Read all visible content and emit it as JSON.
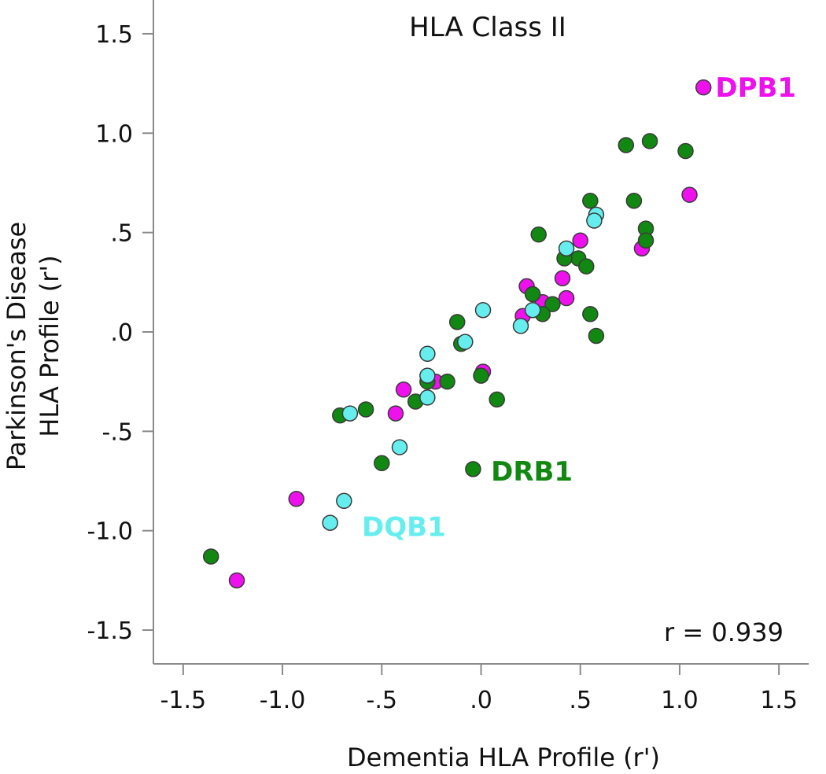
{
  "chart_data": {
    "type": "scatter",
    "title": "HLA Class II",
    "xlabel": "Dementia HLA Profile (r')",
    "ylabel_line1": "Parkinson's Disease",
    "ylabel_line2": "HLA Profile (r')",
    "xlim": [
      -1.65,
      1.65
    ],
    "ylim": [
      -1.67,
      1.67
    ],
    "xticks": [
      -1.5,
      -1.0,
      -0.5,
      0.0,
      0.5,
      1.0,
      1.5
    ],
    "xtick_labels": [
      "-1.5",
      "-1.0",
      "-.5",
      ".0",
      ".5",
      "1.0",
      "1.5"
    ],
    "yticks": [
      1.5,
      1.0,
      0.5,
      0.0,
      -0.5,
      -1.0,
      -1.5
    ],
    "ytick_labels": [
      "1.5",
      "1.0",
      ".5",
      ".0",
      "-.5",
      "-1.0",
      "-1.5"
    ],
    "annotation": "r = 0.939",
    "series": [
      {
        "name": "DPB1",
        "color": "#ee11ee",
        "label_text": "DPB1",
        "label_anchor": [
          1.18,
          1.23
        ],
        "points": [
          [
            1.12,
            1.23
          ],
          [
            1.05,
            0.69
          ],
          [
            0.81,
            0.42
          ],
          [
            0.5,
            0.46
          ],
          [
            0.41,
            0.27
          ],
          [
            0.43,
            0.17
          ],
          [
            0.31,
            0.15
          ],
          [
            0.23,
            0.23
          ],
          [
            0.21,
            0.08
          ],
          [
            0.01,
            -0.2
          ],
          [
            -0.23,
            -0.25
          ],
          [
            -0.39,
            -0.29
          ],
          [
            -0.43,
            -0.41
          ],
          [
            -0.93,
            -0.84
          ],
          [
            -1.23,
            -1.25
          ]
        ]
      },
      {
        "name": "DRB1",
        "color": "#118811",
        "label_text": "DRB1",
        "label_anchor": [
          0.05,
          -0.7
        ],
        "points": [
          [
            0.85,
            0.96
          ],
          [
            0.73,
            0.94
          ],
          [
            1.03,
            0.91
          ],
          [
            0.55,
            0.66
          ],
          [
            0.77,
            0.66
          ],
          [
            0.83,
            0.52
          ],
          [
            0.83,
            0.46
          ],
          [
            0.29,
            0.49
          ],
          [
            0.49,
            0.37
          ],
          [
            0.42,
            0.37
          ],
          [
            0.53,
            0.33
          ],
          [
            0.26,
            0.19
          ],
          [
            0.36,
            0.14
          ],
          [
            0.31,
            0.09
          ],
          [
            0.55,
            0.09
          ],
          [
            0.58,
            -0.02
          ],
          [
            -0.12,
            0.05
          ],
          [
            -0.1,
            -0.06
          ],
          [
            0.0,
            -0.22
          ],
          [
            -0.17,
            -0.25
          ],
          [
            -0.27,
            -0.25
          ],
          [
            -0.33,
            -0.35
          ],
          [
            0.08,
            -0.34
          ],
          [
            -0.58,
            -0.39
          ],
          [
            -0.71,
            -0.42
          ],
          [
            -0.5,
            -0.66
          ],
          [
            -0.04,
            -0.69
          ],
          [
            -1.36,
            -1.13
          ]
        ]
      },
      {
        "name": "DQB1",
        "color": "#66eeee",
        "label_text": "DQB1",
        "label_anchor": [
          -0.6,
          -0.98
        ],
        "points": [
          [
            0.58,
            0.59
          ],
          [
            0.57,
            0.56
          ],
          [
            0.43,
            0.42
          ],
          [
            0.26,
            0.11
          ],
          [
            0.01,
            0.11
          ],
          [
            0.2,
            0.03
          ],
          [
            -0.08,
            -0.05
          ],
          [
            -0.27,
            -0.11
          ],
          [
            -0.27,
            -0.22
          ],
          [
            -0.27,
            -0.33
          ],
          [
            -0.66,
            -0.41
          ],
          [
            -0.41,
            -0.58
          ],
          [
            -0.69,
            -0.85
          ],
          [
            -0.76,
            -0.96
          ]
        ]
      }
    ]
  }
}
